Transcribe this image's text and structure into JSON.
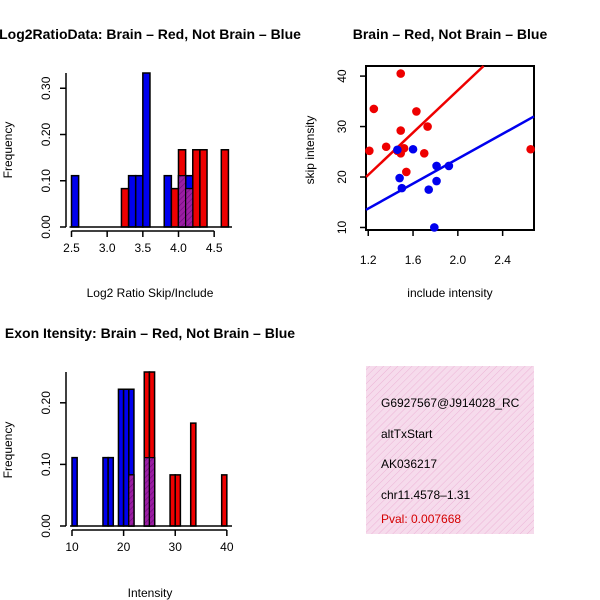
{
  "colors": {
    "red": "#ee0000",
    "blue": "#0000ee",
    "purple": "#9b1ea3",
    "pink_bg": "#f6dbec",
    "pval": "#d40000"
  },
  "chart_data": [
    {
      "id": "ratio",
      "type": "bar",
      "title": "Log2RatioData: Brain – Red, Not Brain – Blue",
      "xlabel": "Log2 Ratio Skip/Include",
      "ylabel": "Frequency",
      "xlim": [
        2.5,
        4.75
      ],
      "ylim": [
        0,
        0.333
      ],
      "xticks": [
        "2.5",
        "3.0",
        "3.5",
        "4.0",
        "4.5"
      ],
      "yticks": [
        "0.00",
        "0.10",
        "0.20",
        "0.30"
      ],
      "bin_width": 0.1,
      "series": [
        {
          "name": "Not Brain",
          "color": "blue",
          "bins": [
            [
              2.5,
              2.6,
              0.111
            ],
            [
              3.3,
              3.4,
              0.111
            ],
            [
              3.4,
              3.5,
              0.111
            ],
            [
              3.5,
              3.6,
              0.333
            ],
            [
              3.8,
              3.9,
              0.111
            ],
            [
              4.0,
              4.1,
              0.111
            ],
            [
              4.1,
              4.2,
              0.111
            ]
          ]
        },
        {
          "name": "Brain",
          "color": "red",
          "bins": [
            [
              3.2,
              3.3,
              0.083
            ],
            [
              3.9,
              4.0,
              0.083
            ],
            [
              4.0,
              4.1,
              0.167
            ],
            [
              4.1,
              4.2,
              0.083
            ],
            [
              4.2,
              4.3,
              0.167
            ],
            [
              4.3,
              4.4,
              0.167
            ],
            [
              4.6,
              4.7,
              0.167
            ]
          ]
        }
      ]
    },
    {
      "id": "scatter",
      "type": "scatter",
      "title": "Brain – Red, Not Brain – Blue",
      "xlabel": "include intensity",
      "ylabel": "skip intensity",
      "xlim": [
        1.18,
        2.68
      ],
      "ylim": [
        9.5,
        42
      ],
      "xticks": [
        "1.2",
        "1.6",
        "2.0",
        "2.4"
      ],
      "xtick_values": [
        1.2,
        1.6,
        2.0,
        2.4
      ],
      "yticks": [
        "10",
        "20",
        "30",
        "40"
      ],
      "ytick_values": [
        10,
        20,
        30,
        40
      ],
      "series": [
        {
          "name": "Brain",
          "color": "red",
          "points": [
            [
              1.21,
              25.2
            ],
            [
              1.25,
              33.5
            ],
            [
              1.36,
              26.0
            ],
            [
              1.46,
              25.2
            ],
            [
              1.49,
              40.5
            ],
            [
              1.49,
              29.2
            ],
            [
              1.49,
              24.7
            ],
            [
              1.52,
              25.7
            ],
            [
              1.54,
              21.0
            ],
            [
              1.63,
              33.0
            ],
            [
              1.7,
              24.7
            ],
            [
              1.73,
              30.0
            ],
            [
              2.65,
              25.5
            ]
          ],
          "fit": [
            [
              1.18,
              20.0
            ],
            [
              2.23,
              42.0
            ]
          ]
        },
        {
          "name": "Not Brain",
          "color": "blue",
          "points": [
            [
              1.46,
              25.4
            ],
            [
              1.48,
              19.8
            ],
            [
              1.5,
              17.8
            ],
            [
              1.6,
              25.5
            ],
            [
              1.74,
              17.5
            ],
            [
              1.79,
              10.0
            ],
            [
              1.81,
              22.2
            ],
            [
              1.81,
              19.2
            ],
            [
              1.92,
              22.2
            ]
          ],
          "fit": [
            [
              1.18,
              13.5
            ],
            [
              2.68,
              32.0
            ]
          ]
        }
      ]
    },
    {
      "id": "intensity",
      "type": "bar",
      "title": "Exon Itensity: Brain – Red, Not Brain – Blue",
      "xlabel": "Intensity",
      "ylabel": "Frequency",
      "xlim": [
        10,
        41
      ],
      "ylim": [
        0,
        0.25
      ],
      "xticks": [
        "10",
        "20",
        "30",
        "40"
      ],
      "yticks": [
        "0.00",
        "0.10",
        "0.20"
      ],
      "bin_width": 1,
      "series": [
        {
          "name": "Not Brain",
          "color": "blue",
          "bins": [
            [
              10,
              11,
              0.111
            ],
            [
              16,
              17,
              0.111
            ],
            [
              17,
              18,
              0.111
            ],
            [
              19,
              20,
              0.222
            ],
            [
              20,
              21,
              0.222
            ],
            [
              21,
              22,
              0.222
            ],
            [
              24,
              25,
              0.111
            ],
            [
              25,
              26,
              0.111
            ]
          ]
        },
        {
          "name": "Brain",
          "color": "red",
          "bins": [
            [
              21,
              22,
              0.083
            ],
            [
              24,
              25,
              0.25
            ],
            [
              25,
              26,
              0.25
            ],
            [
              29,
              30,
              0.083
            ],
            [
              30,
              31,
              0.083
            ],
            [
              33,
              34,
              0.167
            ],
            [
              39,
              40,
              0.083
            ]
          ]
        }
      ]
    }
  ],
  "info_box": {
    "lines": [
      "G6927567@J914028_RC",
      "altTxStart",
      "AK036217",
      "chr11.4578–1.31"
    ],
    "pval": "Pval: 0.007668"
  }
}
